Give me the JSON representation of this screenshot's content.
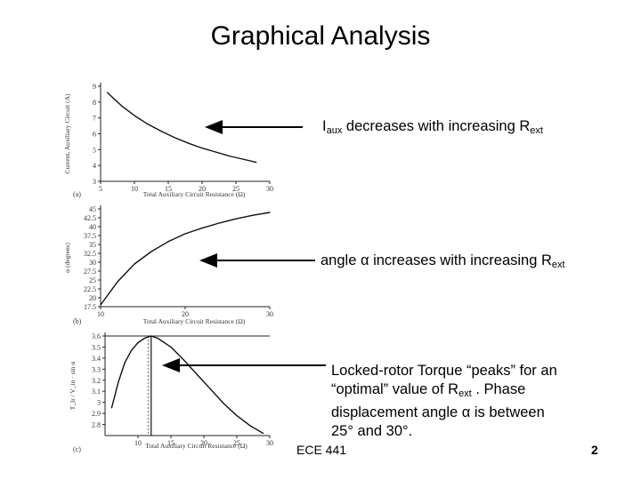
{
  "title": "Graphical Analysis",
  "captions": [
    {
      "pre": "I",
      "sub1": "aux",
      "mid": " decreases with increasing R",
      "sub2": "ext"
    },
    {
      "pre": "angle α increases with increasing R",
      "sub1": "ext"
    },
    {
      "line1": "Locked-rotor Torque “peaks” for an",
      "line2a": "“optimal” value of R",
      "line2sub": "ext",
      "line2b": " .  Phase",
      "line3": "displacement angle α is between",
      "line4": "25° and 30°."
    }
  ],
  "footer": {
    "course": "ECE 441",
    "page": "2"
  },
  "chart_data": [
    {
      "type": "line",
      "panel_label": "(a)",
      "ylabel": "Current, Auxiliary Circuit (A)",
      "xlabel": "Total Auxiliary Circuit Resistance (Ω)",
      "xlim": [
        5,
        30
      ],
      "ylim": [
        3,
        9
      ],
      "x_ticks": [
        5,
        10,
        15,
        20,
        25,
        30
      ],
      "y_ticks": [
        3,
        4,
        5,
        6,
        7,
        8,
        9
      ],
      "x": [
        6,
        8,
        10,
        12,
        14,
        16,
        18,
        20,
        22,
        24,
        26,
        28
      ],
      "y": [
        8.6,
        7.8,
        7.15,
        6.6,
        6.15,
        5.75,
        5.4,
        5.1,
        4.85,
        4.6,
        4.4,
        4.2
      ]
    },
    {
      "type": "line",
      "panel_label": "(b)",
      "ylabel": "α (degrees)",
      "xlabel": "Total Auxiliary Circuit Resistance (Ω)",
      "xlim": [
        10,
        30
      ],
      "ylim": [
        17.5,
        45
      ],
      "x_ticks": [
        10,
        20,
        30
      ],
      "x_tick_labels": [
        "10",
        "20",
        "30"
      ],
      "y_ticks": [
        17.5,
        20,
        22.5,
        25,
        27.5,
        30,
        32.5,
        35,
        37.5,
        40,
        42.5,
        45
      ],
      "y_tick_labels": [
        "17.5",
        "20",
        "22.5",
        "25",
        "27.5",
        "30",
        "32.5",
        "35",
        "37.5",
        "40",
        "42.5",
        "45"
      ],
      "x": [
        10,
        12,
        14,
        16,
        18,
        20,
        22,
        24,
        26,
        28,
        30
      ],
      "y": [
        18,
        24.5,
        29.5,
        33,
        35.8,
        38,
        39.6,
        41,
        42.2,
        43.2,
        44
      ]
    },
    {
      "type": "line",
      "panel_label": "(c)",
      "ylabel": "T_lr / V_in · sin α",
      "xlabel": "Total Auxiliary Circuit Resistance (Ω)",
      "xlim": [
        5,
        30
      ],
      "ylim": [
        2.7,
        3.6
      ],
      "x_ticks": [
        10,
        15,
        20,
        25,
        30
      ],
      "y_ticks": [
        2.8,
        2.9,
        3.0,
        3.1,
        3.2,
        3.3,
        3.4,
        3.5,
        3.6
      ],
      "y_tick_labels": [
        "2.8",
        "2.9",
        "3",
        "3.1",
        "3.2",
        "3.3",
        "3.4",
        "3.5",
        "3.6"
      ],
      "x": [
        6,
        7,
        8,
        9,
        10,
        11,
        12,
        13,
        15,
        17,
        19,
        21,
        23,
        25,
        27,
        29
      ],
      "y": [
        2.95,
        3.18,
        3.36,
        3.47,
        3.54,
        3.58,
        3.6,
        3.58,
        3.5,
        3.38,
        3.25,
        3.12,
        2.99,
        2.88,
        2.79,
        2.72
      ],
      "peak_x": 12
    }
  ]
}
